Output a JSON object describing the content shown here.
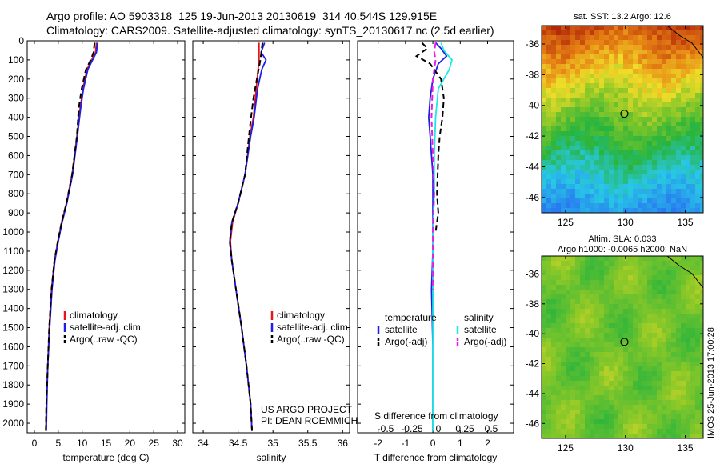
{
  "header": {
    "line1": "Argo profile: AO 5903318_125 19-Jun-2013 20130619_314 40.544S 129.915E",
    "line2": "Climatology: CARS2009. Satellite-adjusted climatology: synTS_20130617.nc (2.5d earlier)"
  },
  "colors": {
    "climatology": "#e8141c",
    "satellite": "#1e1ee6",
    "argo": "#000000",
    "sal_satellite": "#1ee6e6",
    "sal_argo": "#e61ee6"
  },
  "depth_axis": {
    "range": [
      0,
      2050
    ],
    "ticks": [
      "0",
      "100",
      "200",
      "300",
      "400",
      "500",
      "600",
      "700",
      "800",
      "900",
      "1000",
      "1100",
      "1200",
      "1300",
      "1400",
      "1500",
      "1600",
      "1700",
      "1800",
      "1900",
      "2000"
    ]
  },
  "chart_data": [
    {
      "type": "line",
      "id": "temperature",
      "xlabel": "temperature (deg C)",
      "xlim": [
        -1.5,
        31.5
      ],
      "x_ticks": [
        "0",
        "5",
        "10",
        "15",
        "20",
        "25",
        "30"
      ],
      "x_tick_values": [
        0,
        5,
        10,
        15,
        20,
        25,
        30
      ],
      "legend": [
        "climatology",
        "satellite-adj. clim.",
        "Argo(..raw -QC)"
      ],
      "series": [
        {
          "name": "climatology",
          "color_key": "climatology",
          "dashed": false,
          "points": [
            [
              13.0,
              10
            ],
            [
              12.8,
              60
            ],
            [
              12.0,
              100
            ],
            [
              11.0,
              150
            ],
            [
              10.2,
              250
            ],
            [
              9.6,
              350
            ],
            [
              8.9,
              500
            ],
            [
              7.9,
              700
            ],
            [
              6.7,
              850
            ],
            [
              5.7,
              950
            ],
            [
              4.9,
              1050
            ],
            [
              4.2,
              1150
            ],
            [
              3.6,
              1300
            ],
            [
              3.1,
              1500
            ],
            [
              2.8,
              1700
            ],
            [
              2.5,
              1900
            ],
            [
              2.4,
              2040
            ]
          ]
        },
        {
          "name": "satellite-adj. clim.",
          "color_key": "satellite",
          "dashed": false,
          "points": [
            [
              13.2,
              10
            ],
            [
              13.0,
              60
            ],
            [
              12.2,
              100
            ],
            [
              11.2,
              150
            ],
            [
              10.3,
              250
            ],
            [
              9.7,
              350
            ],
            [
              9.0,
              500
            ],
            [
              8.0,
              700
            ],
            [
              6.8,
              850
            ],
            [
              5.8,
              950
            ],
            [
              5.0,
              1050
            ],
            [
              4.3,
              1150
            ],
            [
              3.7,
              1300
            ],
            [
              3.2,
              1500
            ],
            [
              2.8,
              1700
            ],
            [
              2.6,
              1900
            ],
            [
              2.5,
              2040
            ]
          ]
        },
        {
          "name": "Argo(..raw -QC)",
          "color_key": "argo",
          "dashed": true,
          "points": [
            [
              12.6,
              10
            ],
            [
              12.4,
              60
            ],
            [
              11.8,
              100
            ],
            [
              10.8,
              150
            ],
            [
              9.9,
              250
            ],
            [
              9.3,
              350
            ],
            [
              8.9,
              500
            ],
            [
              7.9,
              700
            ],
            [
              6.7,
              850
            ],
            [
              5.7,
              950
            ],
            [
              4.9,
              1050
            ],
            [
              4.2,
              1150
            ],
            [
              3.6,
              1300
            ],
            [
              3.1,
              1500
            ],
            [
              2.8,
              1700
            ],
            [
              2.5,
              1900
            ],
            [
              2.4,
              2040
            ]
          ]
        }
      ]
    },
    {
      "type": "line",
      "id": "salinity",
      "xlabel": "salinity",
      "xlim": [
        33.85,
        36.1
      ],
      "x_ticks": [
        "34",
        "34.5",
        "35",
        "35.5",
        "36"
      ],
      "x_tick_values": [
        34,
        34.5,
        35,
        35.5,
        36
      ],
      "legend": [
        "climatology",
        "satellite-adj. clim.",
        "Argo(..raw -QC)"
      ],
      "annotation": [
        "US ARGO PROJECT",
        "PI: DEAN ROEMMICH"
      ],
      "series": [
        {
          "name": "climatology",
          "color_key": "climatology",
          "dashed": false,
          "points": [
            [
              34.8,
              10
            ],
            [
              34.8,
              100
            ],
            [
              34.76,
              250
            ],
            [
              34.72,
              400
            ],
            [
              34.67,
              500
            ],
            [
              34.6,
              700
            ],
            [
              34.5,
              850
            ],
            [
              34.42,
              950
            ],
            [
              34.39,
              1050
            ],
            [
              34.41,
              1150
            ],
            [
              34.47,
              1300
            ],
            [
              34.55,
              1500
            ],
            [
              34.62,
              1700
            ],
            [
              34.68,
              1900
            ],
            [
              34.7,
              2040
            ]
          ]
        },
        {
          "name": "satellite-adj. clim.",
          "color_key": "satellite",
          "dashed": false,
          "points": [
            [
              34.88,
              10
            ],
            [
              34.83,
              60
            ],
            [
              34.9,
              100
            ],
            [
              34.84,
              150
            ],
            [
              34.78,
              250
            ],
            [
              34.73,
              400
            ],
            [
              34.68,
              500
            ],
            [
              34.6,
              700
            ],
            [
              34.5,
              850
            ],
            [
              34.41,
              950
            ],
            [
              34.38,
              1050
            ],
            [
              34.41,
              1150
            ],
            [
              34.47,
              1300
            ],
            [
              34.55,
              1500
            ],
            [
              34.62,
              1700
            ],
            [
              34.68,
              1900
            ],
            [
              34.7,
              2040
            ]
          ]
        },
        {
          "name": "Argo(..raw -QC)",
          "color_key": "argo",
          "dashed": true,
          "points": [
            [
              34.85,
              10
            ],
            [
              34.82,
              100
            ],
            [
              34.77,
              200
            ],
            [
              34.72,
              300
            ],
            [
              34.67,
              450
            ],
            [
              34.6,
              700
            ],
            [
              34.5,
              850
            ],
            [
              34.41,
              950
            ],
            [
              34.38,
              1050
            ],
            [
              34.41,
              1150
            ],
            [
              34.47,
              1300
            ],
            [
              34.55,
              1500
            ],
            [
              34.62,
              1700
            ],
            [
              34.68,
              1900
            ],
            [
              34.7,
              2040
            ]
          ]
        }
      ]
    },
    {
      "type": "line",
      "id": "difference",
      "xlabel": "T difference from climatology",
      "xlim": [
        -2.75,
        2.95
      ],
      "x_ticks": [
        "-2",
        "-1",
        "0",
        "1",
        "2"
      ],
      "x_tick_values": [
        -2,
        -1,
        0,
        1,
        2
      ],
      "top_xlabel": "S difference from climatology",
      "top_ticks": [
        "-0.5",
        "-0.25",
        "0",
        "0.25",
        "0.5"
      ],
      "legend_groups": [
        {
          "title": "temperature",
          "items": [
            "satellite",
            "Argo(-adj)"
          ]
        },
        {
          "title": "salinity",
          "items": [
            "satellite",
            "Argo(-adj)"
          ]
        }
      ],
      "series": [
        {
          "name": "temperature satellite",
          "color_key": "satellite",
          "dashed": false,
          "points": [
            [
              0.1,
              10
            ],
            [
              0.3,
              40
            ],
            [
              0.5,
              80
            ],
            [
              0.2,
              120
            ],
            [
              0.0,
              200
            ],
            [
              -0.1,
              300
            ],
            [
              -0.15,
              400
            ],
            [
              -0.1,
              500
            ],
            [
              -0.05,
              600
            ],
            [
              0.0,
              700
            ],
            [
              0.0,
              900
            ],
            [
              0.0,
              1100
            ],
            [
              -0.05,
              1300
            ],
            [
              0.0,
              1600
            ],
            [
              0.0,
              2040
            ]
          ]
        },
        {
          "name": "temperature Argo(-adj)",
          "color_key": "argo",
          "dashed": true,
          "points": [
            [
              -0.4,
              10
            ],
            [
              -0.2,
              40
            ],
            [
              -0.6,
              80
            ],
            [
              -0.1,
              120
            ],
            [
              0.3,
              200
            ],
            [
              0.4,
              300
            ],
            [
              0.35,
              400
            ],
            [
              0.25,
              500
            ],
            [
              0.2,
              600
            ],
            [
              0.15,
              800
            ],
            [
              0.2,
              900
            ],
            [
              0.1,
              1000
            ]
          ]
        },
        {
          "name": "salinity satellite",
          "color_key": "sal_satellite",
          "dashed": false,
          "points": [
            [
              0.3,
              10
            ],
            [
              0.4,
              50
            ],
            [
              0.7,
              100
            ],
            [
              0.6,
              150
            ],
            [
              0.2,
              250
            ],
            [
              0.1,
              400
            ],
            [
              0.05,
              600
            ],
            [
              0.05,
              800
            ],
            [
              0.0,
              1000
            ],
            [
              0.0,
              1300
            ],
            [
              0.0,
              1700
            ],
            [
              0.0,
              2040
            ]
          ]
        },
        {
          "name": "salinity Argo(-adj)",
          "color_key": "sal_argo",
          "dashed": true,
          "points": [
            [
              0.1,
              10
            ],
            [
              0.05,
              60
            ],
            [
              0.1,
              100
            ],
            [
              0.0,
              200
            ],
            [
              -0.05,
              400
            ],
            [
              0.0,
              600
            ],
            [
              0.05,
              800
            ],
            [
              0.0,
              1000
            ],
            [
              0.0,
              1300
            ]
          ]
        }
      ]
    },
    {
      "type": "heatmap",
      "id": "sst_map",
      "title": "sat. SST: 13.2  Argo: 12.6",
      "xlim": [
        123,
        136.5
      ],
      "ylim": [
        -47,
        -34.8
      ],
      "x_ticks": [
        "125",
        "130",
        "135"
      ],
      "x_tick_values": [
        125,
        130,
        135
      ],
      "y_ticks": [
        "-36",
        "-38",
        "-40",
        "-42",
        "-44",
        "-46"
      ],
      "y_tick_values": [
        -36,
        -38,
        -40,
        -42,
        -44,
        -46
      ],
      "marker": {
        "lon": 129.915,
        "lat": -40.544
      }
    },
    {
      "type": "heatmap",
      "id": "sla_map",
      "title": "Altim. SLA: 0.033",
      "subtitle": "Argo h1000: -0.0065 h2000: NaN",
      "xlim": [
        123,
        136.5
      ],
      "ylim": [
        -47,
        -34.8
      ],
      "x_ticks": [
        "125",
        "130",
        "135"
      ],
      "x_tick_values": [
        125,
        130,
        135
      ],
      "y_ticks": [
        "-36",
        "-38",
        "-40",
        "-42",
        "-44",
        "-46"
      ],
      "y_tick_values": [
        -36,
        -38,
        -40,
        -42,
        -44,
        -46
      ],
      "marker": {
        "lon": 129.915,
        "lat": -40.544
      }
    }
  ],
  "side_stamp": "IMOS 25-Jun-2013 17:00:28"
}
